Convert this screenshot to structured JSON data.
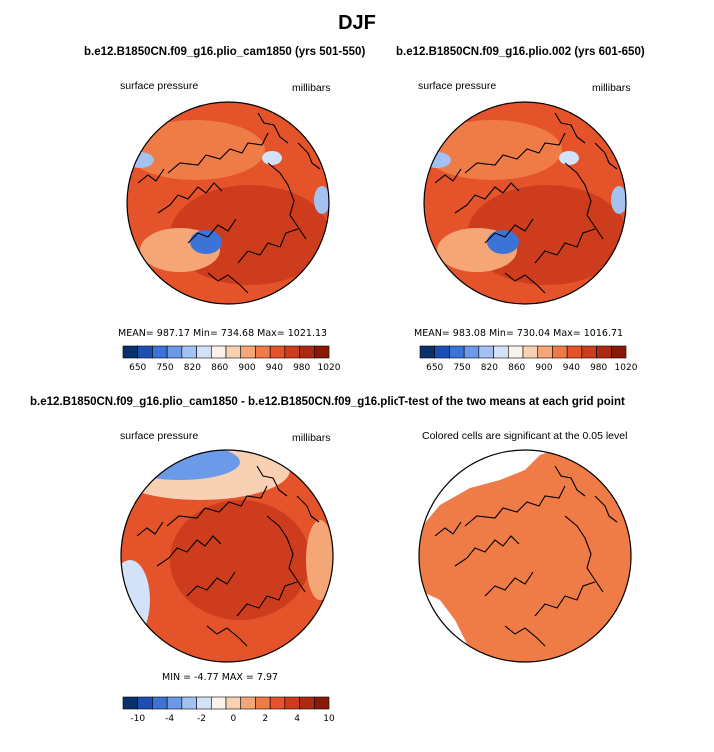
{
  "title": "DJF",
  "colors": {
    "scale": [
      "#08306b",
      "#1c4fb4",
      "#3b73d6",
      "#6b9ae8",
      "#a3c2f2",
      "#d3e2f8",
      "#fbf2ea",
      "#f8d0b3",
      "#f4a677",
      "#ef7b46",
      "#e4532a",
      "#cd3c1c",
      "#ad2a12",
      "#8a1a08"
    ],
    "coast": "#000000",
    "missing": "#ffffff"
  },
  "colorbar_main": {
    "ticks": [
      "650",
      "750",
      "820",
      "860",
      "900",
      "940",
      "980",
      "1020"
    ]
  },
  "colorbar_diff": {
    "ticks": [
      "-10",
      "-4",
      "-2",
      "0",
      "2",
      "4",
      "10"
    ]
  },
  "chart_data": [
    {
      "type": "heatmap",
      "title": "b.e12.B1850CN.f09_g16.plio_cam1850 (yrs 501-550)",
      "left_label": "surface pressure",
      "right_label": "millibars",
      "projection": "polar stereographic (north)",
      "stats": {
        "mean": "987.17",
        "min": "734.68",
        "max": "1021.13"
      },
      "stats_text": "MEAN= 987.17   Min= 734.68   Max= 1021.13",
      "colorbar_levels": [
        "650",
        "750",
        "820",
        "860",
        "900",
        "940",
        "980",
        "1020"
      ]
    },
    {
      "type": "heatmap",
      "title": "b.e12.B1850CN.f09_g16.plio.002 (yrs 601-650)",
      "left_label": "surface pressure",
      "right_label": "millibars",
      "projection": "polar stereographic (north)",
      "stats": {
        "mean": "983.08",
        "min": "730.04",
        "max": "1016.71"
      },
      "stats_text": "MEAN= 983.08   Min= 730.04   Max= 1016.71",
      "colorbar_levels": [
        "650",
        "750",
        "820",
        "860",
        "900",
        "940",
        "980",
        "1020"
      ]
    },
    {
      "type": "heatmap",
      "title": "b.e12.B1850CN.f09_g16.plio_cam1850 - b.e12.B1850CN.f09_g16.plio.002",
      "left_label": "surface pressure",
      "right_label": "millibars",
      "projection": "polar stereographic (north)",
      "stats": {
        "min": "-4.77",
        "max": "7.97"
      },
      "stats_text": "MIN =   -4.77  MAX =    7.97",
      "colorbar_levels": [
        "-10",
        "-4",
        "-2",
        "0",
        "2",
        "4",
        "10"
      ]
    },
    {
      "type": "heatmap",
      "title": "T-test of the two means at each grid point",
      "left_label": "Colored cells are significant at the 0.05 level",
      "projection": "polar stereographic (north)"
    }
  ]
}
